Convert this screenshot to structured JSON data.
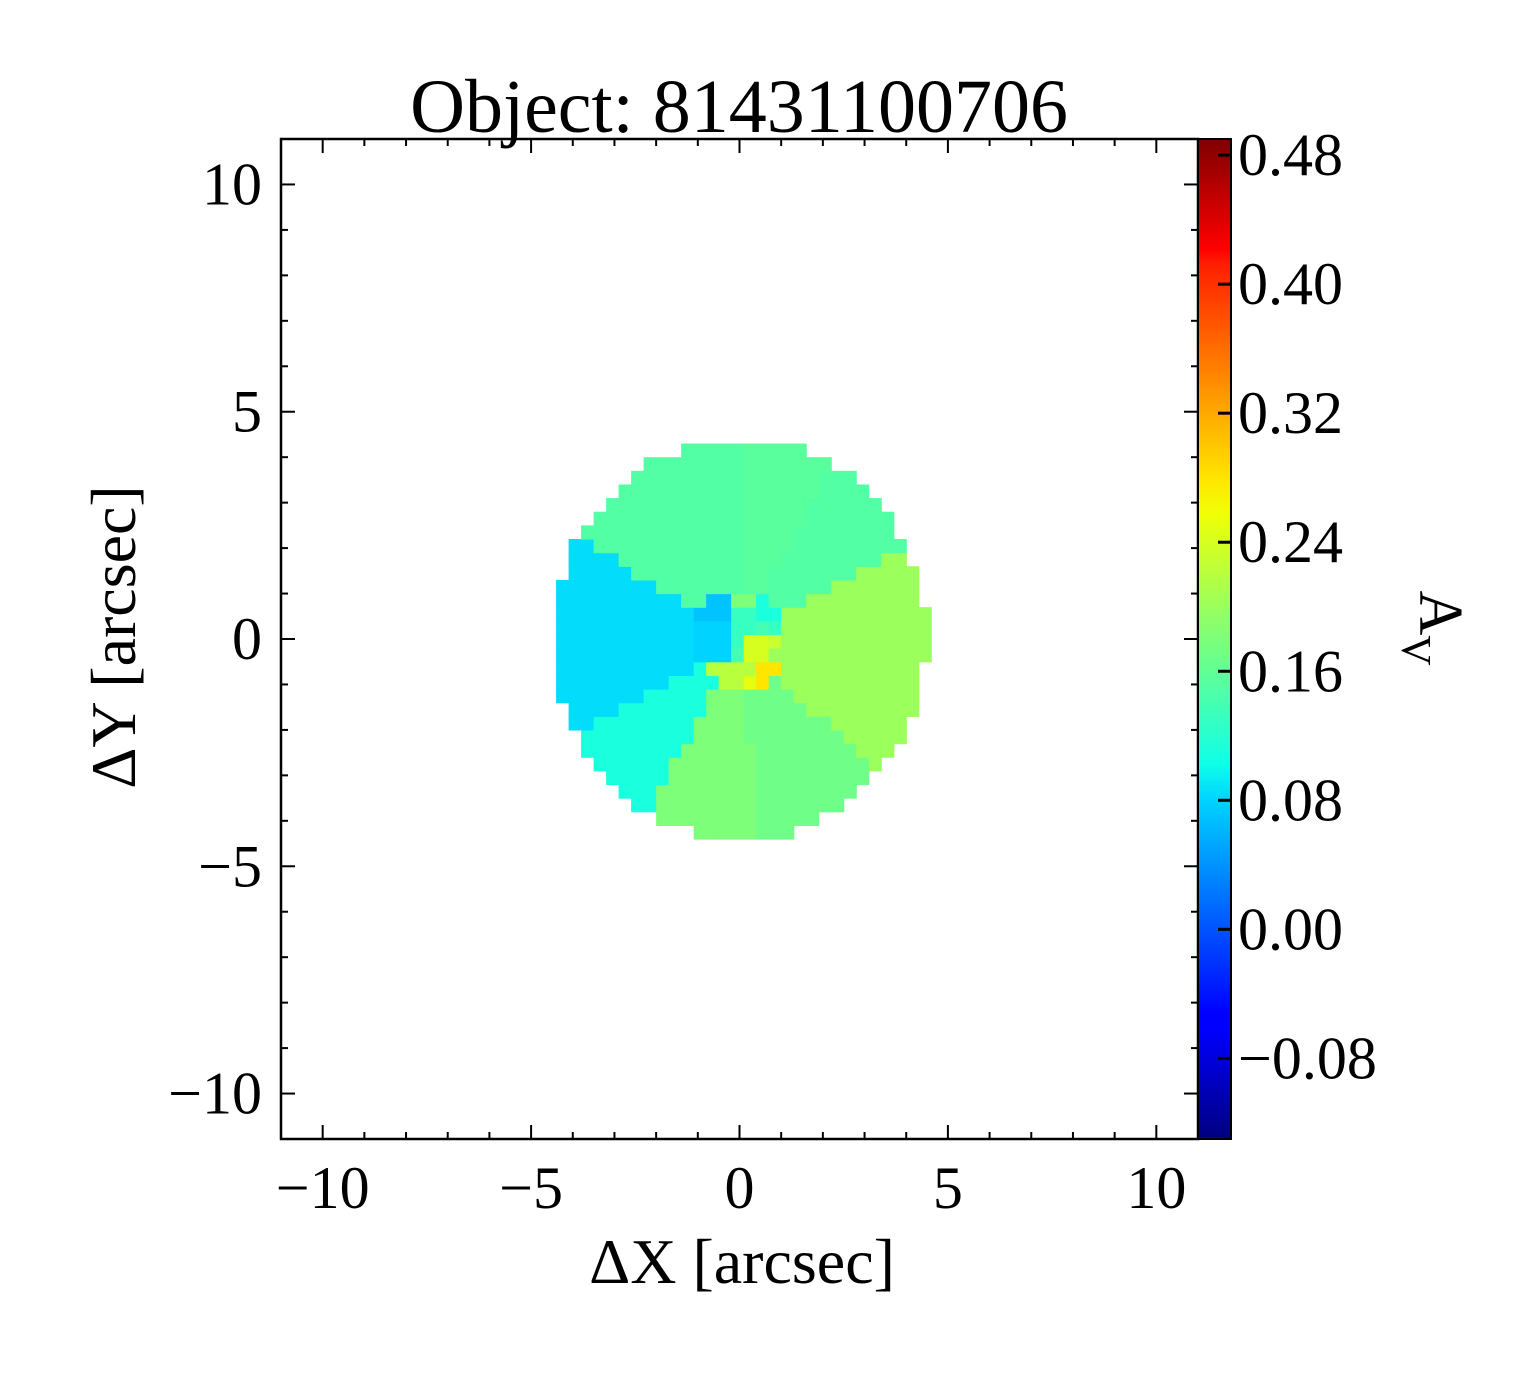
{
  "chart_data": {
    "type": "heatmap",
    "title": "Object: 81431100706",
    "xlabel": "ΔX [arcsec]",
    "ylabel": "ΔY [arcsec]",
    "xlim": [
      -11,
      11
    ],
    "ylim": [
      -11,
      11
    ],
    "xticks": [
      -10,
      -5,
      0,
      5,
      10
    ],
    "yticks": [
      -10,
      -5,
      0,
      5,
      10
    ],
    "xtick_labels": [
      "−10",
      "−5",
      "0",
      "5",
      "10"
    ],
    "ytick_labels": [
      "−10",
      "−5",
      "0",
      "5",
      "10"
    ],
    "colorbar": {
      "label": "A",
      "label_subscript": "V",
      "colormap": "jet",
      "vmin": -0.13,
      "vmax": 0.49,
      "ticks": [
        0.48,
        0.4,
        0.32,
        0.24,
        0.16,
        0.08,
        0.0,
        -0.08
      ],
      "tick_labels": [
        "0.48",
        "0.40",
        "0.32",
        "0.24",
        "0.16",
        "0.08",
        "0.00",
        "−0.08"
      ]
    },
    "grid": false,
    "source_center": [
      0.0,
      0.0
    ],
    "outer_radius": 4.4,
    "core_radius": 1.1,
    "sectors": [
      {
        "from_deg": 90,
        "to_deg": 106,
        "value": 0.15
      },
      {
        "from_deg": 106,
        "to_deg": 150,
        "value": 0.15
      },
      {
        "from_deg": 150,
        "to_deg": 208,
        "value": 0.085
      },
      {
        "from_deg": 208,
        "to_deg": 240,
        "value": 0.11
      },
      {
        "from_deg": 240,
        "to_deg": 276,
        "value": 0.18
      },
      {
        "from_deg": 276,
        "to_deg": 318,
        "value": 0.17
      },
      {
        "from_deg": 318,
        "to_deg": 350,
        "value": 0.2
      },
      {
        "from_deg": 350,
        "to_deg": 28,
        "value": 0.2
      },
      {
        "from_deg": 28,
        "to_deg": 60,
        "value": 0.15
      },
      {
        "from_deg": 60,
        "to_deg": 90,
        "value": 0.155
      }
    ],
    "inner_bins": [
      {
        "x0": -1.5,
        "y0": -0.5,
        "x1": -1.0,
        "y1": 0.2,
        "value": 0.06
      },
      {
        "x0": -1.5,
        "y0": 0.4,
        "x1": -0.3,
        "y1": 1.1,
        "value": 0.07
      },
      {
        "x0": -1.0,
        "y0": -0.4,
        "x1": -0.3,
        "y1": 0.4,
        "value": 0.08
      },
      {
        "x0": -0.3,
        "y0": 0.6,
        "x1": 0.4,
        "y1": 1.1,
        "value": 0.18
      },
      {
        "x0": -0.3,
        "y0": -0.2,
        "x1": 0.4,
        "y1": 0.6,
        "value": 0.13
      },
      {
        "x0": 0.4,
        "y0": 0.5,
        "x1": 2.0,
        "y1": 1.0,
        "value": 0.11
      },
      {
        "x0": 0.7,
        "y0": 0.0,
        "x1": 1.3,
        "y1": 0.5,
        "value": 0.13
      },
      {
        "x0": 0.7,
        "y0": -0.2,
        "x1": 1.2,
        "y1": 0.2,
        "value": 0.23
      },
      {
        "x0": 0.7,
        "y0": -0.6,
        "x1": 1.3,
        "y1": -0.2,
        "value": 0.2
      },
      {
        "x0": 0.2,
        "y0": -0.4,
        "x1": 0.8,
        "y1": 0.1,
        "value": 0.24
      },
      {
        "x0": -0.7,
        "y0": -1.0,
        "x1": 0.6,
        "y1": -0.4,
        "value": 0.22
      },
      {
        "x0": -0.7,
        "y0": -1.4,
        "x1": 0.2,
        "y1": -1.0,
        "value": 0.23
      },
      {
        "x0": 0.2,
        "y0": -1.7,
        "x1": 1.0,
        "y1": -0.8,
        "value": 0.25
      },
      {
        "x0": 0.4,
        "y0": -1.4,
        "x1": 0.9,
        "y1": -0.6,
        "value": 0.28
      },
      {
        "x0": 0.2,
        "y0": -1.9,
        "x1": 0.8,
        "y1": -1.4,
        "value": 0.27
      },
      {
        "x0": 0.9,
        "y0": -1.2,
        "x1": 1.5,
        "y1": -0.6,
        "value": 0.21
      },
      {
        "x0": -0.4,
        "y0": -1.9,
        "x1": 0.2,
        "y1": -1.4,
        "value": 0.2
      }
    ]
  }
}
